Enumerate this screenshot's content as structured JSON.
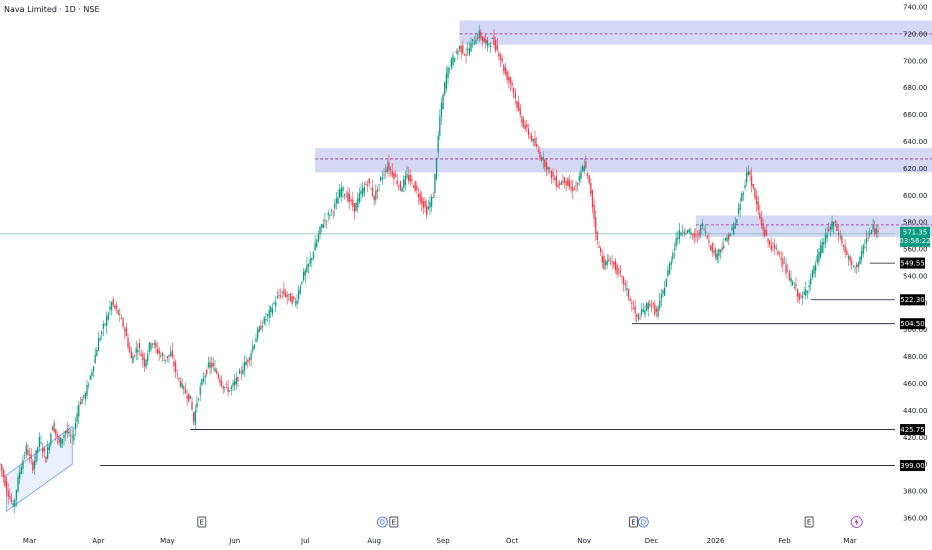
{
  "header": {
    "title": "Nava Limited · 1D · NSE"
  },
  "colors": {
    "up": "#089981",
    "down": "#f23645",
    "zone_fill": "#c5cbf2",
    "zone_line": "#9c2a8f",
    "level_line": "#131722",
    "last_price_line": "#89c4c2",
    "channel": "#5b8ff9",
    "label_dark": "#000000",
    "last_price_tag": "#089981"
  },
  "chart_data": {
    "type": "candlestick",
    "title": "Nava Limited · 1D · NSE",
    "y_axis": {
      "min": 360,
      "max": 740,
      "ticks": [
        "740.00",
        "720.00",
        "700.00",
        "680.00",
        "660.00",
        "640.00",
        "620.00",
        "600.00",
        "580.00",
        "560.00",
        "540.00",
        "520.00",
        "500.00",
        "480.00",
        "460.00",
        "440.00",
        "420.00",
        "400.00",
        "380.00",
        "360.00"
      ]
    },
    "x_axis": {
      "labels": [
        "Mar",
        "Apr",
        "May",
        "Jun",
        "Jul",
        "Aug",
        "Sep",
        "Oct",
        "Nov",
        "Dec",
        "2026",
        "Feb",
        "Mar"
      ]
    },
    "path": [
      [
        0,
        400
      ],
      [
        4,
        382
      ],
      [
        8,
        368
      ],
      [
        12,
        395
      ],
      [
        16,
        412
      ],
      [
        20,
        398
      ],
      [
        24,
        418
      ],
      [
        28,
        404
      ],
      [
        32,
        430
      ],
      [
        36,
        415
      ],
      [
        40,
        425
      ],
      [
        44,
        418
      ],
      [
        48,
        445
      ],
      [
        52,
        452
      ],
      [
        56,
        470
      ],
      [
        60,
        492
      ],
      [
        64,
        505
      ],
      [
        68,
        520
      ],
      [
        72,
        512
      ],
      [
        76,
        500
      ],
      [
        80,
        478
      ],
      [
        84,
        488
      ],
      [
        88,
        475
      ],
      [
        92,
        492
      ],
      [
        96,
        484
      ],
      [
        100,
        478
      ],
      [
        104,
        482
      ],
      [
        108,
        465
      ],
      [
        112,
        455
      ],
      [
        116,
        448
      ],
      [
        118,
        432
      ],
      [
        120,
        447
      ],
      [
        124,
        465
      ],
      [
        128,
        475
      ],
      [
        132,
        468
      ],
      [
        136,
        458
      ],
      [
        140,
        455
      ],
      [
        144,
        462
      ],
      [
        148,
        472
      ],
      [
        152,
        480
      ],
      [
        156,
        495
      ],
      [
        160,
        505
      ],
      [
        164,
        512
      ],
      [
        168,
        522
      ],
      [
        172,
        528
      ],
      [
        176,
        524
      ],
      [
        180,
        520
      ],
      [
        184,
        538
      ],
      [
        188,
        548
      ],
      [
        192,
        562
      ],
      [
        196,
        578
      ],
      [
        200,
        585
      ],
      [
        204,
        592
      ],
      [
        208,
        605
      ],
      [
        212,
        598
      ],
      [
        216,
        590
      ],
      [
        220,
        602
      ],
      [
        224,
        610
      ],
      [
        228,
        598
      ],
      [
        232,
        612
      ],
      [
        236,
        622
      ],
      [
        240,
        615
      ],
      [
        244,
        605
      ],
      [
        248,
        614
      ],
      [
        252,
        608
      ],
      [
        256,
        598
      ],
      [
        260,
        588
      ],
      [
        264,
        600
      ],
      [
        268,
        658
      ],
      [
        272,
        690
      ],
      [
        276,
        702
      ],
      [
        280,
        710
      ],
      [
        284,
        705
      ],
      [
        288,
        714
      ],
      [
        292,
        720
      ],
      [
        296,
        712
      ],
      [
        300,
        715
      ],
      [
        304,
        706
      ],
      [
        308,
        690
      ],
      [
        312,
        682
      ],
      [
        316,
        662
      ],
      [
        320,
        650
      ],
      [
        324,
        642
      ],
      [
        328,
        632
      ],
      [
        332,
        624
      ],
      [
        336,
        615
      ],
      [
        340,
        608
      ],
      [
        344,
        612
      ],
      [
        348,
        604
      ],
      [
        352,
        608
      ],
      [
        356,
        624
      ],
      [
        360,
        602
      ],
      [
        364,
        565
      ],
      [
        368,
        548
      ],
      [
        372,
        552
      ],
      [
        376,
        544
      ],
      [
        380,
        535
      ],
      [
        384,
        522
      ],
      [
        388,
        508
      ],
      [
        392,
        514
      ],
      [
        396,
        520
      ],
      [
        400,
        512
      ],
      [
        404,
        528
      ],
      [
        408,
        548
      ],
      [
        412,
        568
      ],
      [
        416,
        575
      ],
      [
        420,
        572
      ],
      [
        424,
        568
      ],
      [
        428,
        578
      ],
      [
        432,
        565
      ],
      [
        436,
        555
      ],
      [
        440,
        562
      ],
      [
        444,
        570
      ],
      [
        448,
        578
      ],
      [
        452,
        600
      ],
      [
        456,
        620
      ],
      [
        460,
        598
      ],
      [
        464,
        578
      ],
      [
        468,
        565
      ],
      [
        472,
        560
      ],
      [
        476,
        555
      ],
      [
        480,
        540
      ],
      [
        484,
        532
      ],
      [
        488,
        522
      ],
      [
        492,
        532
      ],
      [
        496,
        545
      ],
      [
        500,
        560
      ],
      [
        504,
        572
      ],
      [
        508,
        580
      ],
      [
        512,
        568
      ],
      [
        516,
        555
      ],
      [
        520,
        545
      ],
      [
        524,
        552
      ],
      [
        528,
        568
      ],
      [
        532,
        575
      ],
      [
        535,
        571.35
      ]
    ],
    "zones": [
      {
        "from": 280,
        "to": 730,
        "y_low": 712,
        "y_high": 730,
        "mid": 720
      },
      {
        "from": 192,
        "to": 730,
        "y_low": 617,
        "y_high": 635,
        "mid": 627
      },
      {
        "from": 424,
        "to": 735,
        "y_low": 569,
        "y_high": 585,
        "mid": 578
      }
    ],
    "levels": [
      {
        "value": 549.55,
        "label": "549.55",
        "start": 530
      },
      {
        "value": 522.3,
        "label": "522.30",
        "start": 494
      },
      {
        "value": 504.5,
        "label": "504.50",
        "start": 385
      },
      {
        "value": 425.75,
        "label": "425.75",
        "start": 116
      },
      {
        "value": 399.0,
        "label": "399.00",
        "start": 61
      }
    ],
    "last_price": {
      "value": 571.35,
      "label": "571.35",
      "countdown": "03:56:22"
    },
    "channel": {
      "x0": 4,
      "x1": 44,
      "lower0": 365,
      "lower1": 400,
      "upper0": 392,
      "upper1": 428
    },
    "events": [
      {
        "pos": 123,
        "type": "E"
      },
      {
        "pos": 233,
        "type": "D"
      },
      {
        "pos": 240,
        "type": "E"
      },
      {
        "pos": 386,
        "type": "E"
      },
      {
        "pos": 392,
        "type": "D"
      },
      {
        "pos": 493,
        "type": "E"
      },
      {
        "pos": 522,
        "type": "bolt"
      }
    ]
  }
}
